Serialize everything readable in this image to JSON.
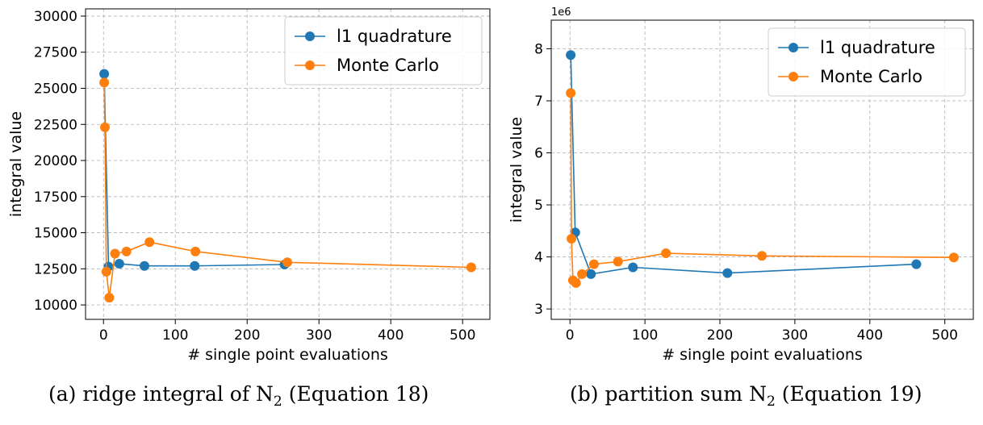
{
  "chart_data": [
    {
      "type": "line",
      "xlabel": "# single point evaluations",
      "ylabel": "integral value",
      "xlim": [
        -25,
        538
      ],
      "ylim": [
        9000,
        30500
      ],
      "xticks": [
        0,
        100,
        200,
        300,
        400,
        500
      ],
      "yticks": [
        10000,
        12500,
        15000,
        17500,
        20000,
        22500,
        25000,
        27500,
        30000
      ],
      "ytick_labels": [
        "10000",
        "12500",
        "15000",
        "17500",
        "20000",
        "22500",
        "25000",
        "27500",
        "30000"
      ],
      "grid": true,
      "legend_position": "top-right",
      "series": [
        {
          "name": "l1 quadrature",
          "color": "#1f77b4",
          "x": [
            1,
            7,
            22,
            57,
            127,
            252
          ],
          "y": [
            26000,
            12650,
            12850,
            12700,
            12700,
            12800
          ]
        },
        {
          "name": "Monte Carlo",
          "color": "#ff7f0e",
          "x": [
            1,
            2,
            4,
            8,
            16,
            32,
            64,
            128,
            256,
            512
          ],
          "y": [
            25400,
            22300,
            12300,
            10500,
            13550,
            13700,
            14350,
            13700,
            12950,
            12600
          ]
        }
      ]
    },
    {
      "type": "line",
      "xlabel": "# single point evaluations",
      "ylabel": "integral value",
      "offset_label": "1e6",
      "xlim": [
        -25,
        538
      ],
      "ylim": [
        2.8,
        8.55
      ],
      "xticks": [
        0,
        100,
        200,
        300,
        400,
        500
      ],
      "yticks": [
        3,
        4,
        5,
        6,
        7,
        8
      ],
      "ytick_labels": [
        "3",
        "4",
        "5",
        "6",
        "7",
        "8"
      ],
      "grid": true,
      "legend_position": "top-right",
      "series": [
        {
          "name": "l1 quadrature",
          "color": "#1f77b4",
          "x": [
            1,
            7,
            28,
            84,
            210,
            462
          ],
          "y": [
            7.88,
            4.47,
            3.67,
            3.8,
            3.69,
            3.86
          ]
        },
        {
          "name": "Monte Carlo",
          "color": "#ff7f0e",
          "x": [
            1,
            2,
            4,
            8,
            16,
            32,
            64,
            128,
            256,
            512
          ],
          "y": [
            7.15,
            4.35,
            3.55,
            3.5,
            3.67,
            3.86,
            3.91,
            4.07,
            4.02,
            3.99
          ]
        }
      ]
    }
  ],
  "captions": {
    "a": "(a) ridge integral of N",
    "a_sub": "2",
    "a_rest": " (Equation 18)",
    "b": "(b) partition sum N",
    "b_sub": "2",
    "b_rest": " (Equation 19)"
  }
}
